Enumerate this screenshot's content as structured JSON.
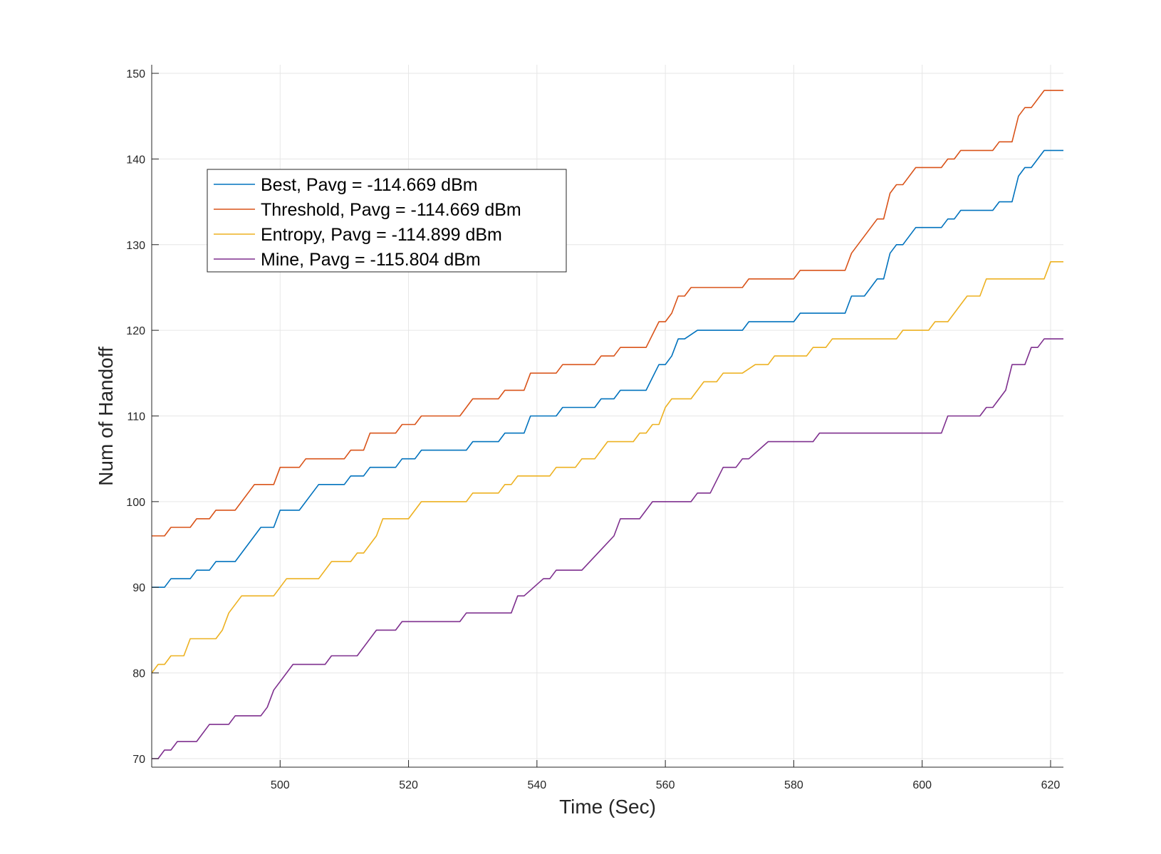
{
  "chart_data": {
    "type": "line",
    "title": "",
    "xlabel": "Time (Sec)",
    "ylabel": "Num of Handoff",
    "xlim": [
      480,
      622
    ],
    "ylim": [
      69,
      151
    ],
    "xticks": [
      500,
      520,
      540,
      560,
      580,
      600,
      620
    ],
    "yticks": [
      70,
      80,
      90,
      100,
      110,
      120,
      130,
      140,
      150
    ],
    "grid": true,
    "legend_position": "upper-left",
    "series": [
      {
        "name": "Best, Pavg = -114.669 dBm",
        "color": "#0072BD",
        "points": [
          [
            480,
            90
          ],
          [
            482,
            90
          ],
          [
            483,
            91
          ],
          [
            486,
            91
          ],
          [
            487,
            92
          ],
          [
            489,
            92
          ],
          [
            490,
            93
          ],
          [
            493,
            93
          ],
          [
            497,
            97
          ],
          [
            499,
            97
          ],
          [
            500,
            99
          ],
          [
            503,
            99
          ],
          [
            506,
            102
          ],
          [
            510,
            102
          ],
          [
            511,
            103
          ],
          [
            513,
            103
          ],
          [
            514,
            104
          ],
          [
            518,
            104
          ],
          [
            519,
            105
          ],
          [
            521,
            105
          ],
          [
            522,
            106
          ],
          [
            529,
            106
          ],
          [
            530,
            107
          ],
          [
            534,
            107
          ],
          [
            535,
            108
          ],
          [
            538,
            108
          ],
          [
            539,
            110
          ],
          [
            543,
            110
          ],
          [
            544,
            111
          ],
          [
            549,
            111
          ],
          [
            550,
            112
          ],
          [
            552,
            112
          ],
          [
            553,
            113
          ],
          [
            557,
            113
          ],
          [
            559,
            116
          ],
          [
            560,
            116
          ],
          [
            561,
            117
          ],
          [
            562,
            119
          ],
          [
            563,
            119
          ],
          [
            565,
            120
          ],
          [
            572,
            120
          ],
          [
            573,
            121
          ],
          [
            580,
            121
          ],
          [
            581,
            122
          ],
          [
            588,
            122
          ],
          [
            589,
            124
          ],
          [
            591,
            124
          ],
          [
            593,
            126
          ],
          [
            594,
            126
          ],
          [
            595,
            129
          ],
          [
            596,
            130
          ],
          [
            597,
            130
          ],
          [
            599,
            132
          ],
          [
            603,
            132
          ],
          [
            604,
            133
          ],
          [
            605,
            133
          ],
          [
            606,
            134
          ],
          [
            611,
            134
          ],
          [
            612,
            135
          ],
          [
            614,
            135
          ],
          [
            615,
            138
          ],
          [
            616,
            139
          ],
          [
            617,
            139
          ],
          [
            619,
            141
          ],
          [
            622,
            141
          ]
        ]
      },
      {
        "name": "Threshold, Pavg = -114.669 dBm",
        "color": "#D95319",
        "points": [
          [
            480,
            96
          ],
          [
            482,
            96
          ],
          [
            483,
            97
          ],
          [
            486,
            97
          ],
          [
            487,
            98
          ],
          [
            489,
            98
          ],
          [
            490,
            99
          ],
          [
            493,
            99
          ],
          [
            496,
            102
          ],
          [
            499,
            102
          ],
          [
            500,
            104
          ],
          [
            503,
            104
          ],
          [
            504,
            105
          ],
          [
            510,
            105
          ],
          [
            511,
            106
          ],
          [
            513,
            106
          ],
          [
            514,
            108
          ],
          [
            518,
            108
          ],
          [
            519,
            109
          ],
          [
            521,
            109
          ],
          [
            522,
            110
          ],
          [
            528,
            110
          ],
          [
            530,
            112
          ],
          [
            534,
            112
          ],
          [
            535,
            113
          ],
          [
            538,
            113
          ],
          [
            539,
            115
          ],
          [
            543,
            115
          ],
          [
            544,
            116
          ],
          [
            549,
            116
          ],
          [
            550,
            117
          ],
          [
            552,
            117
          ],
          [
            553,
            118
          ],
          [
            557,
            118
          ],
          [
            559,
            121
          ],
          [
            560,
            121
          ],
          [
            561,
            122
          ],
          [
            562,
            124
          ],
          [
            563,
            124
          ],
          [
            564,
            125
          ],
          [
            572,
            125
          ],
          [
            573,
            126
          ],
          [
            580,
            126
          ],
          [
            581,
            127
          ],
          [
            588,
            127
          ],
          [
            589,
            129
          ],
          [
            592,
            132
          ],
          [
            593,
            133
          ],
          [
            594,
            133
          ],
          [
            595,
            136
          ],
          [
            596,
            137
          ],
          [
            597,
            137
          ],
          [
            599,
            139
          ],
          [
            603,
            139
          ],
          [
            604,
            140
          ],
          [
            605,
            140
          ],
          [
            606,
            141
          ],
          [
            611,
            141
          ],
          [
            612,
            142
          ],
          [
            614,
            142
          ],
          [
            615,
            145
          ],
          [
            616,
            146
          ],
          [
            617,
            146
          ],
          [
            619,
            148
          ],
          [
            622,
            148
          ]
        ]
      },
      {
        "name": "Entropy, Pavg = -114.899 dBm",
        "color": "#EDB120",
        "points": [
          [
            480,
            80
          ],
          [
            481,
            81
          ],
          [
            482,
            81
          ],
          [
            483,
            82
          ],
          [
            485,
            82
          ],
          [
            486,
            84
          ],
          [
            490,
            84
          ],
          [
            491,
            85
          ],
          [
            492,
            87
          ],
          [
            494,
            89
          ],
          [
            499,
            89
          ],
          [
            501,
            91
          ],
          [
            506,
            91
          ],
          [
            508,
            93
          ],
          [
            511,
            93
          ],
          [
            512,
            94
          ],
          [
            513,
            94
          ],
          [
            514,
            95
          ],
          [
            515,
            96
          ],
          [
            516,
            98
          ],
          [
            520,
            98
          ],
          [
            522,
            100
          ],
          [
            529,
            100
          ],
          [
            530,
            101
          ],
          [
            534,
            101
          ],
          [
            535,
            102
          ],
          [
            536,
            102
          ],
          [
            537,
            103
          ],
          [
            542,
            103
          ],
          [
            543,
            104
          ],
          [
            546,
            104
          ],
          [
            547,
            105
          ],
          [
            549,
            105
          ],
          [
            551,
            107
          ],
          [
            555,
            107
          ],
          [
            556,
            108
          ],
          [
            557,
            108
          ],
          [
            558,
            109
          ],
          [
            559,
            109
          ],
          [
            560,
            111
          ],
          [
            561,
            112
          ],
          [
            564,
            112
          ],
          [
            566,
            114
          ],
          [
            568,
            114
          ],
          [
            569,
            115
          ],
          [
            572,
            115
          ],
          [
            574,
            116
          ],
          [
            576,
            116
          ],
          [
            577,
            117
          ],
          [
            582,
            117
          ],
          [
            583,
            118
          ],
          [
            585,
            118
          ],
          [
            586,
            119
          ],
          [
            596,
            119
          ],
          [
            597,
            120
          ],
          [
            601,
            120
          ],
          [
            602,
            121
          ],
          [
            604,
            121
          ],
          [
            606,
            123
          ],
          [
            607,
            124
          ],
          [
            609,
            124
          ],
          [
            610,
            126
          ],
          [
            619,
            126
          ],
          [
            620,
            128
          ],
          [
            622,
            128
          ]
        ]
      },
      {
        "name": "Mine, Pavg = -115.804 dBm",
        "color": "#7E2F8E",
        "points": [
          [
            480,
            70
          ],
          [
            481,
            70
          ],
          [
            482,
            71
          ],
          [
            483,
            71
          ],
          [
            484,
            72
          ],
          [
            487,
            72
          ],
          [
            489,
            74
          ],
          [
            492,
            74
          ],
          [
            493,
            75
          ],
          [
            497,
            75
          ],
          [
            498,
            76
          ],
          [
            499,
            78
          ],
          [
            502,
            81
          ],
          [
            507,
            81
          ],
          [
            508,
            82
          ],
          [
            512,
            82
          ],
          [
            515,
            85
          ],
          [
            518,
            85
          ],
          [
            519,
            86
          ],
          [
            528,
            86
          ],
          [
            529,
            87
          ],
          [
            536,
            87
          ],
          [
            537,
            89
          ],
          [
            538,
            89
          ],
          [
            541,
            91
          ],
          [
            542,
            91
          ],
          [
            543,
            92
          ],
          [
            547,
            92
          ],
          [
            552,
            96
          ],
          [
            553,
            98
          ],
          [
            556,
            98
          ],
          [
            558,
            100
          ],
          [
            564,
            100
          ],
          [
            565,
            101
          ],
          [
            567,
            101
          ],
          [
            569,
            104
          ],
          [
            571,
            104
          ],
          [
            572,
            105
          ],
          [
            573,
            105
          ],
          [
            576,
            107
          ],
          [
            583,
            107
          ],
          [
            584,
            108
          ],
          [
            603,
            108
          ],
          [
            604,
            110
          ],
          [
            609,
            110
          ],
          [
            610,
            111
          ],
          [
            611,
            111
          ],
          [
            613,
            113
          ],
          [
            614,
            116
          ],
          [
            616,
            116
          ],
          [
            617,
            118
          ],
          [
            618,
            118
          ],
          [
            619,
            119
          ],
          [
            622,
            119
          ]
        ]
      }
    ]
  }
}
